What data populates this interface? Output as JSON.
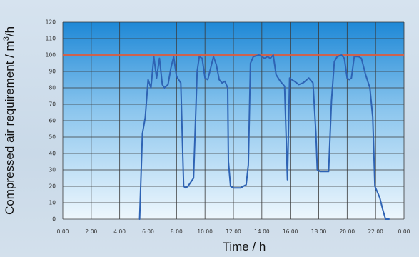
{
  "chart_data": {
    "type": "line",
    "title": "",
    "xlabel": "Time / h",
    "ylabel_main": "Compressed air requirement / m",
    "ylabel_sup": "3",
    "ylabel_tail": "/h",
    "xlim": [
      0,
      24
    ],
    "ylim": [
      0,
      120
    ],
    "x_ticks": [
      "0:00",
      "2:00",
      "4:00",
      "6:00",
      "8:00",
      "10:00",
      "12:00",
      "14:00",
      "16:00",
      "18:00",
      "20:00",
      "22:00",
      "0:00"
    ],
    "y_ticks": [
      "0",
      "10",
      "20",
      "30",
      "40",
      "50",
      "60",
      "70",
      "80",
      "90",
      "100",
      "110",
      "120"
    ],
    "grid": true,
    "colors": {
      "line": "#2e63b4",
      "reference": "#e05a3a",
      "plot_top": "#1e88d6",
      "plot_bottom": "#eef7fd",
      "grid": "#3a3a3a"
    },
    "reference_line": {
      "y": 100
    },
    "series": [
      {
        "x": [
          5.4,
          5.6,
          5.8,
          6.0,
          6.2,
          6.4,
          6.6,
          6.8,
          7.0,
          7.15,
          7.4,
          7.6,
          7.8,
          8.0,
          8.15,
          8.3,
          8.5,
          8.65,
          8.8,
          9.2,
          9.45,
          9.6,
          9.8,
          10.0,
          10.2,
          10.4,
          10.6,
          10.8,
          11.0,
          11.2,
          11.4,
          11.6,
          11.65,
          11.8,
          12.0,
          12.5,
          12.9,
          13.05,
          13.2,
          13.4,
          13.8,
          14.2,
          14.4,
          14.6,
          14.8,
          15.0,
          15.3,
          15.6,
          15.8,
          15.95,
          16.1,
          16.3,
          16.6,
          16.9,
          17.3,
          17.6,
          17.8,
          17.9,
          18.1,
          18.7,
          18.9,
          19.1,
          19.3,
          19.6,
          19.8,
          20.0,
          20.15,
          20.3,
          20.5,
          20.8,
          21.0,
          21.3,
          21.6,
          21.8,
          21.95,
          22.1,
          22.3,
          22.5,
          22.7,
          22.95
        ],
        "y": [
          0,
          52,
          62,
          85,
          80,
          99,
          86,
          98,
          82,
          80,
          82,
          92,
          99,
          87,
          85,
          83,
          20,
          19,
          20,
          25,
          90,
          99,
          98,
          86,
          85,
          92,
          99,
          94,
          85,
          83,
          84,
          80,
          35,
          20,
          19,
          19,
          21,
          33,
          95,
          99,
          100,
          98,
          99,
          98,
          100,
          88,
          84,
          81,
          24,
          86,
          85,
          84,
          82,
          83,
          86,
          83,
          53,
          30,
          29,
          29,
          72,
          96,
          99,
          100,
          98,
          86,
          85,
          86,
          99,
          99,
          98,
          88,
          80,
          62,
          20,
          17,
          13,
          6,
          0,
          0
        ]
      }
    ]
  }
}
